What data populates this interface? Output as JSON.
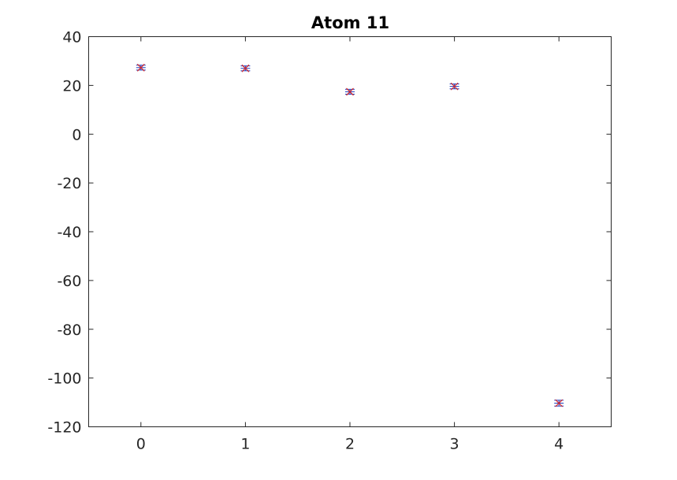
{
  "chart_data": {
    "type": "scatter",
    "title": "Atom 11",
    "xlabel": "",
    "ylabel": "",
    "xlim": [
      -0.5,
      4.5
    ],
    "ylim": [
      -120,
      40
    ],
    "x_ticks": [
      0,
      1,
      2,
      3,
      4
    ],
    "x_tick_labels": [
      "0",
      "1",
      "2",
      "3",
      "4"
    ],
    "y_ticks": [
      40,
      20,
      0,
      -20,
      -40,
      -60,
      -80,
      -100,
      -120
    ],
    "y_tick_labels": [
      "40",
      "20",
      "0",
      "-20",
      "-40",
      "-60",
      "-80",
      "-100",
      "-120"
    ],
    "grid": false,
    "series": [
      {
        "marker": "x",
        "color": "#d62728",
        "errorbar_color": "#1f3fbf",
        "x": [
          0,
          1,
          2,
          3,
          4
        ],
        "y": [
          27.3,
          27.0,
          17.4,
          19.6,
          -110.3
        ],
        "error": [
          1.0,
          1.0,
          1.0,
          1.0,
          1.2
        ]
      }
    ]
  }
}
